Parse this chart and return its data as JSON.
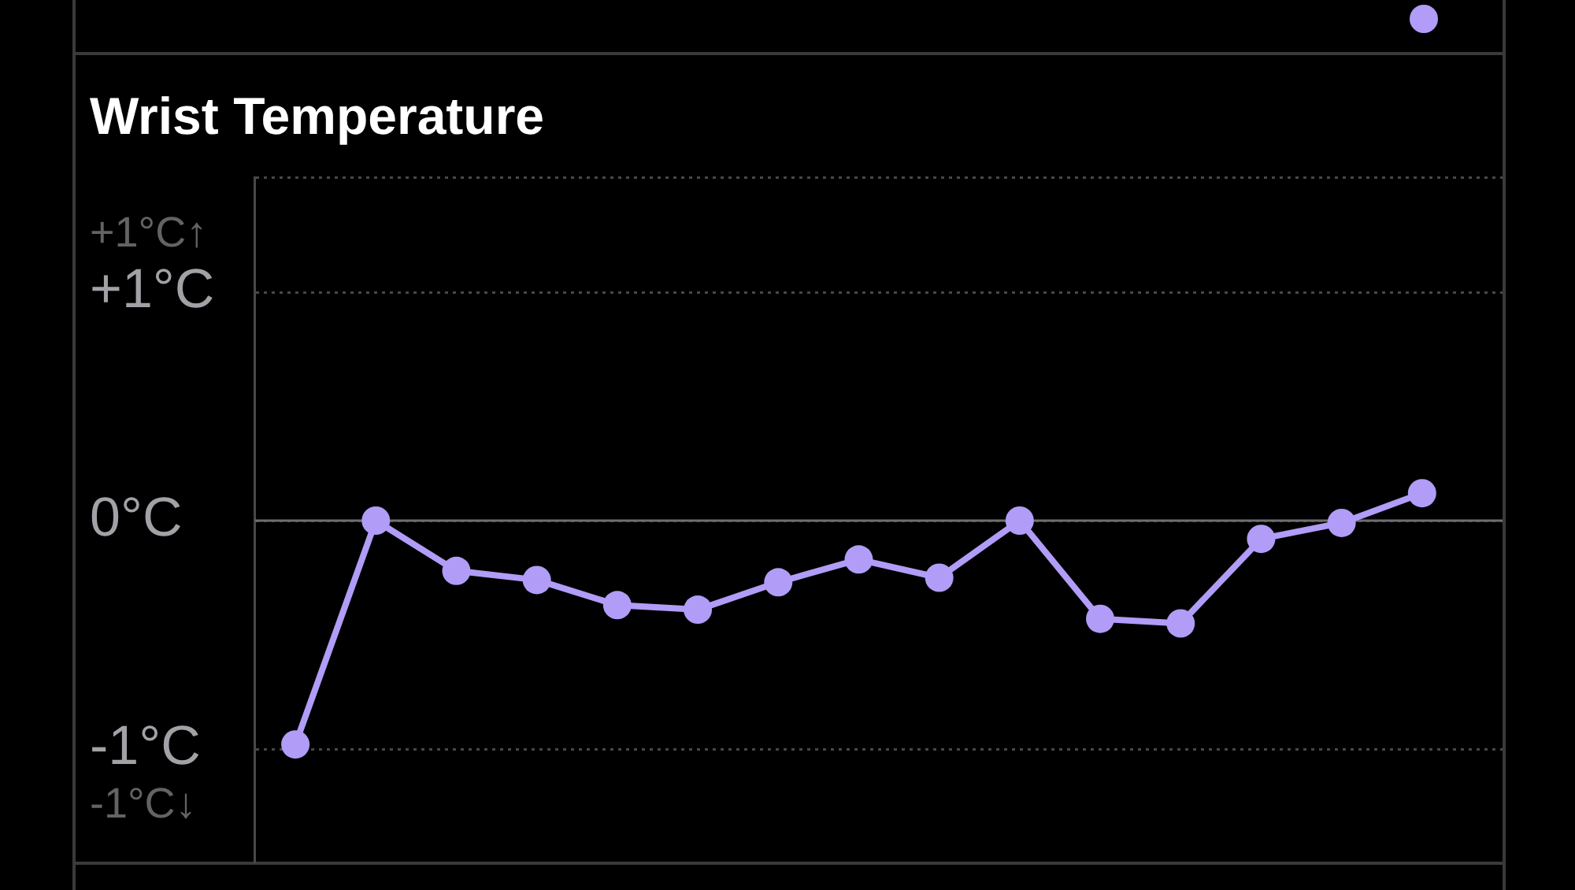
{
  "chart_data": {
    "type": "line",
    "title": "Wrist Temperature",
    "categories": [
      null,
      null,
      null,
      null,
      null,
      null,
      null,
      null,
      null,
      null,
      null,
      null,
      null,
      null,
      null
    ],
    "values": [
      -0.98,
      0,
      -0.22,
      -0.26,
      -0.37,
      -0.39,
      -0.27,
      -0.17,
      -0.25,
      0,
      -0.43,
      -0.45,
      -0.08,
      -0.01,
      0.12
    ],
    "color": "#b19cf7",
    "marker": "circle",
    "ylim": [
      -1.5,
      1.5
    ],
    "yticks": [
      {
        "value": -1.25,
        "label": "-1°C↓"
      },
      {
        "value": -1,
        "label": "-1°C"
      },
      {
        "value": 0,
        "label": "0°C"
      },
      {
        "value": 1,
        "label": "+1°C"
      },
      {
        "value": 1.25,
        "label": "+1°C↑"
      },
      {
        "value": 1.5,
        "label": null
      }
    ],
    "grid": "y",
    "ref_lines": [
      {
        "axis": "y",
        "value": 0,
        "color": "#6e6e73"
      }
    ],
    "tick_labels": "y"
  }
}
